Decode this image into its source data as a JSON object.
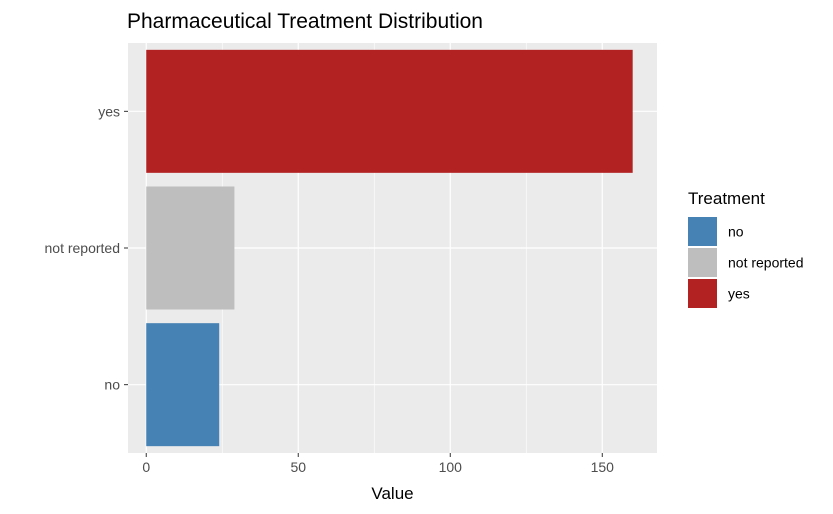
{
  "chart_data": {
    "type": "bar",
    "orientation": "horizontal",
    "title": "Pharmaceutical Treatment Distribution",
    "xlabel": "Value",
    "ylabel": "",
    "categories": [
      "no",
      "not reported",
      "yes"
    ],
    "values": [
      24,
      29,
      160
    ],
    "colors": [
      "#4682b4",
      "#bebebe",
      "#b22222"
    ],
    "xlim": [
      -6,
      168
    ],
    "x_ticks": [
      0,
      50,
      100,
      150
    ],
    "grid": true,
    "legend": {
      "title": "Treatment",
      "placement": "right",
      "items": [
        {
          "label": "no",
          "color": "#4682b4"
        },
        {
          "label": "not reported",
          "color": "#bebebe"
        },
        {
          "label": "yes",
          "color": "#b22222"
        }
      ]
    }
  }
}
